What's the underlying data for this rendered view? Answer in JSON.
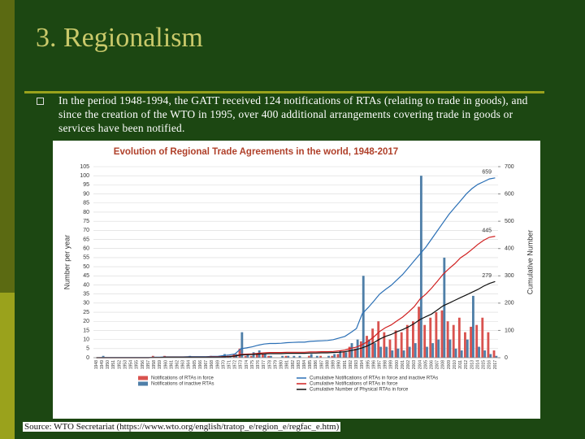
{
  "slide": {
    "title": "3. Regionalism",
    "bullet": "In the period 1948-1994, the GATT received 124 notifications of RTAs (relating to trade in goods), and since the creation of the WTO in 1995, over 400 additional arrangements covering trade in goods or services have been notified.",
    "source": "Source: WTO Secretariat (https://www.wto.org/english/tratop_e/region_e/regfac_e.htm)"
  },
  "chart_data": {
    "type": "bar",
    "title": "Evolution of Regional Trade Agreements in the world, 1948-2017",
    "y_label": "Number per year",
    "y2_label": "Cumulative Number",
    "categories": [
      "1948",
      "1949",
      "1950",
      "1951",
      "1952",
      "1953",
      "1954",
      "1955",
      "1956",
      "1957",
      "1958",
      "1959",
      "1960",
      "1961",
      "1962",
      "1963",
      "1964",
      "1965",
      "1966",
      "1967",
      "1968",
      "1969",
      "1970",
      "1971",
      "1972",
      "1973",
      "1974",
      "1975",
      "1976",
      "1977",
      "1978",
      "1979",
      "1980",
      "1981",
      "1982",
      "1983",
      "1984",
      "1985",
      "1986",
      "1987",
      "1988",
      "1989",
      "1990",
      "1991",
      "1992",
      "1993",
      "1994",
      "1995",
      "1996",
      "1997",
      "1998",
      "1999",
      "2000",
      "2001",
      "2002",
      "2003",
      "2004",
      "2005",
      "2006",
      "2007",
      "2008",
      "2009",
      "2010",
      "2011",
      "2012",
      "2013",
      "2014",
      "2015",
      "2016",
      "2017"
    ],
    "series": [
      {
        "name": "Notifications of RTAs in force",
        "kind": "bar",
        "color": "#d9534f",
        "values": [
          0,
          0,
          0,
          0,
          0,
          0,
          0,
          0,
          0,
          0,
          1,
          0,
          1,
          0,
          0,
          0,
          0,
          0,
          0,
          0,
          1,
          0,
          1,
          1,
          2,
          5,
          1,
          1,
          2,
          2,
          1,
          0,
          0,
          1,
          0,
          0,
          0,
          1,
          0,
          1,
          0,
          1,
          2,
          3,
          6,
          5,
          9,
          12,
          16,
          20,
          14,
          10,
          15,
          14,
          18,
          20,
          28,
          18,
          22,
          25,
          26,
          20,
          18,
          22,
          14,
          17,
          18,
          22,
          14,
          4
        ]
      },
      {
        "name": "Notifications of inactive RTAs",
        "kind": "bar",
        "color": "#4f7fa8",
        "values": [
          0,
          1,
          0,
          0,
          0,
          0,
          0,
          0,
          0,
          0,
          0,
          0,
          0,
          0,
          0,
          0,
          1,
          0,
          0,
          0,
          0,
          0,
          2,
          1,
          2,
          14,
          2,
          3,
          4,
          2,
          1,
          0,
          1,
          1,
          1,
          1,
          0,
          2,
          1,
          0,
          1,
          2,
          4,
          3,
          8,
          10,
          45,
          10,
          8,
          6,
          6,
          4,
          5,
          4,
          6,
          8,
          100,
          6,
          8,
          10,
          55,
          10,
          5,
          4,
          10,
          34,
          6,
          4,
          2,
          1
        ]
      },
      {
        "name": "Cumulative Notifications of RTAs in force and inactive RTAs",
        "kind": "line",
        "axis": "y2",
        "color": "#2a6fb5",
        "values": [
          0,
          1,
          1,
          1,
          1,
          1,
          1,
          1,
          1,
          1,
          2,
          2,
          3,
          3,
          3,
          3,
          4,
          4,
          4,
          4,
          5,
          5,
          8,
          10,
          14,
          33,
          36,
          40,
          46,
          50,
          52,
          52,
          53,
          55,
          56,
          57,
          57,
          60,
          61,
          62,
          63,
          66,
          72,
          78,
          92,
          107,
          161,
          183,
          207,
          233,
          250,
          265,
          285,
          305,
          330,
          355,
          380,
          405,
          435,
          465,
          495,
          525,
          550,
          575,
          600,
          620,
          635,
          645,
          655,
          659
        ]
      },
      {
        "name": "Cumulative Notifications of RTAs in force",
        "kind": "line",
        "axis": "y2",
        "color": "#d02020",
        "values": [
          0,
          0,
          0,
          0,
          0,
          0,
          0,
          0,
          0,
          0,
          1,
          1,
          2,
          2,
          2,
          2,
          2,
          2,
          2,
          2,
          3,
          3,
          4,
          5,
          7,
          12,
          13,
          14,
          16,
          18,
          19,
          19,
          19,
          20,
          20,
          20,
          20,
          21,
          21,
          22,
          22,
          23,
          25,
          28,
          34,
          39,
          48,
          60,
          76,
          96,
          110,
          120,
          135,
          149,
          167,
          187,
          215,
          233,
          255,
          280,
          306,
          326,
          344,
          366,
          380,
          397,
          415,
          430,
          441,
          445
        ]
      },
      {
        "name": "Cumulative Number of Physical RTAs in force",
        "kind": "line",
        "axis": "y2",
        "color": "#111111",
        "values": [
          0,
          0,
          0,
          0,
          0,
          0,
          0,
          0,
          0,
          0,
          1,
          1,
          2,
          2,
          2,
          2,
          2,
          2,
          2,
          2,
          2,
          2,
          3,
          4,
          6,
          10,
          11,
          12,
          13,
          14,
          15,
          15,
          15,
          16,
          16,
          16,
          16,
          17,
          17,
          18,
          18,
          19,
          20,
          22,
          26,
          30,
          36,
          44,
          55,
          68,
          78,
          85,
          95,
          103,
          113,
          125,
          140,
          150,
          160,
          175,
          190,
          200,
          210,
          220,
          230,
          240,
          250,
          262,
          272,
          279
        ]
      }
    ],
    "ylim": [
      0,
      105
    ],
    "yticks": [
      0,
      5,
      10,
      15,
      20,
      25,
      30,
      35,
      40,
      45,
      50,
      55,
      60,
      65,
      70,
      75,
      80,
      85,
      90,
      95,
      100,
      105
    ],
    "y2lim": [
      0,
      700
    ],
    "y2ticks": [
      0,
      100,
      200,
      300,
      400,
      500,
      600,
      700
    ],
    "grid": true
  }
}
